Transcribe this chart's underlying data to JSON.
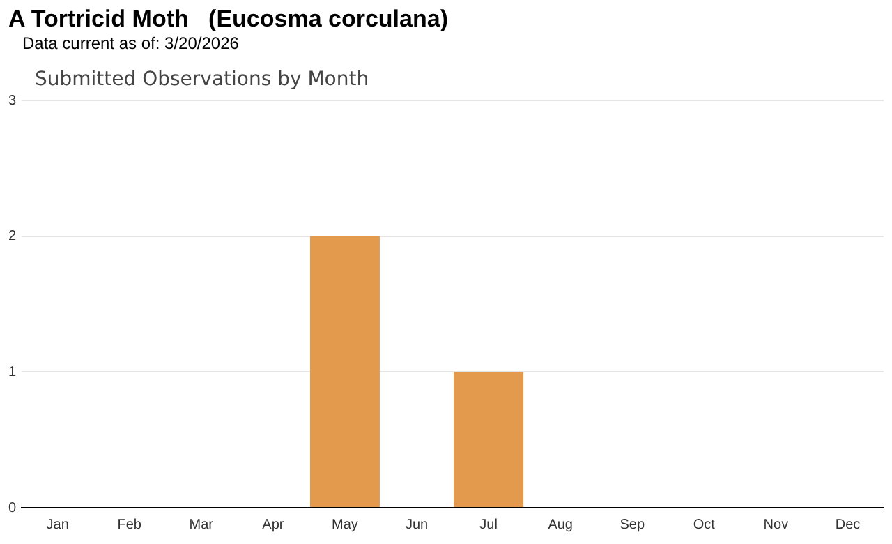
{
  "chart_data": {
    "type": "bar",
    "title": "A Tortricid Moth   (Eucosma corculana)",
    "subtitle": "Data current as of: 3/20/2026",
    "annotations": [
      "Submitted Observations by Month"
    ],
    "categories": [
      "Jan",
      "Feb",
      "Mar",
      "Apr",
      "May",
      "Jun",
      "Jul",
      "Aug",
      "Sep",
      "Oct",
      "Nov",
      "Dec"
    ],
    "values": [
      0,
      0,
      0,
      0,
      2,
      0,
      1,
      0,
      0,
      0,
      0,
      0
    ],
    "color": "#e39a4c",
    "ylim": [
      0,
      3
    ],
    "yticks": [
      0,
      1,
      2,
      3
    ],
    "grid": "y",
    "legend": false
  }
}
